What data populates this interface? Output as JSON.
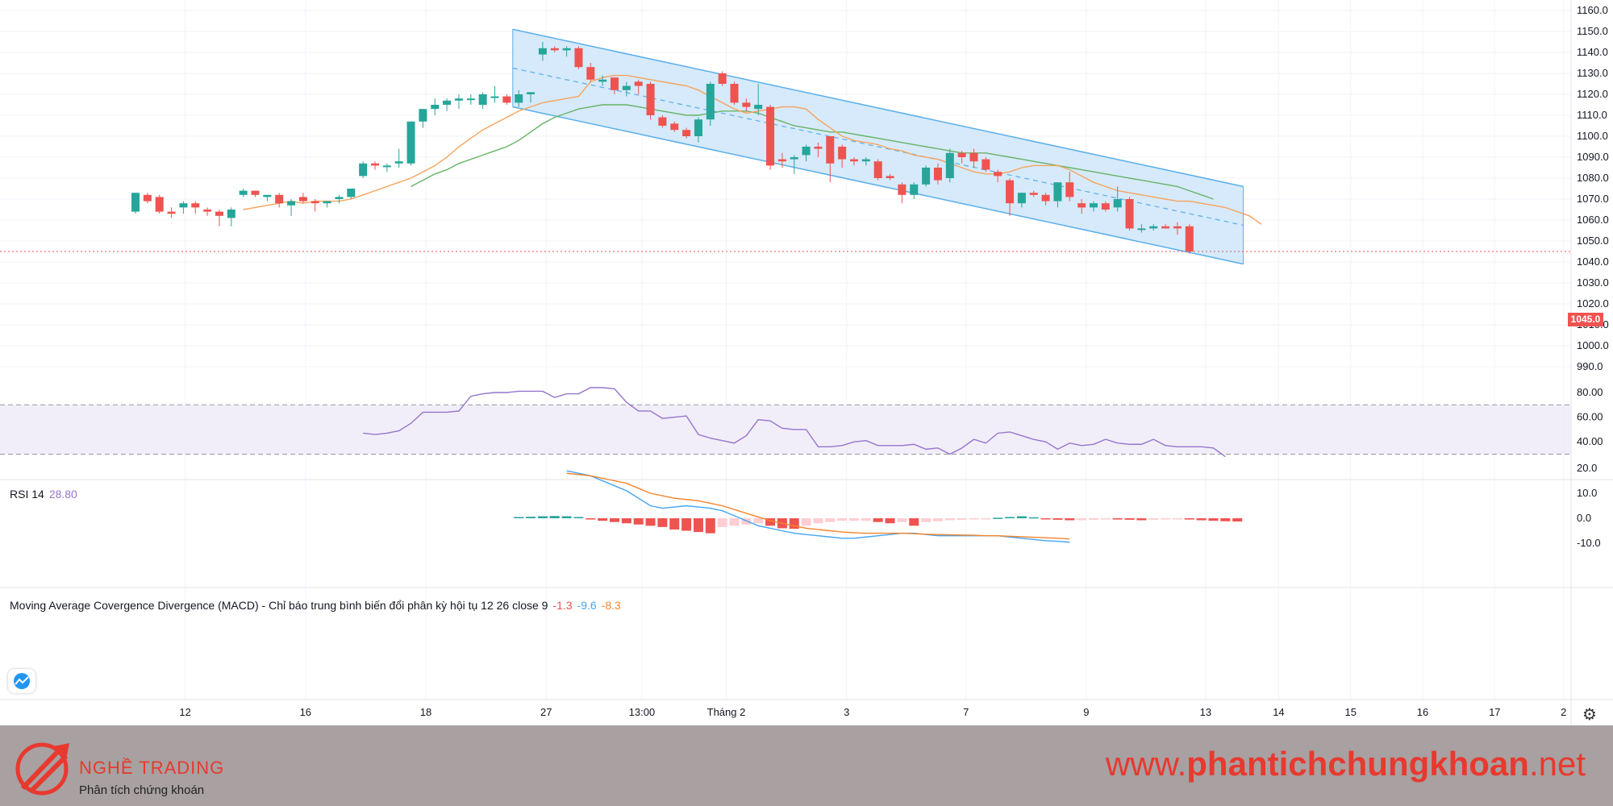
{
  "chart_data": {
    "type": "candlestick",
    "x_ticks": [
      "12",
      "16",
      "18",
      "27",
      "13:00",
      "Tháng 2",
      "3",
      "7",
      "9",
      "13",
      "14",
      "15",
      "16",
      "17",
      "2"
    ],
    "price_axis": {
      "ticks": [
        "1160.0",
        "1150.0",
        "1140.0",
        "1130.0",
        "1120.0",
        "1110.0",
        "1100.0",
        "1090.0",
        "1080.0",
        "1070.0",
        "1060.0",
        "1050.0",
        "1040.0",
        "1030.0",
        "1020.0",
        "1010.0",
        "1000.0",
        "990.0"
      ],
      "range": [
        985,
        1163
      ]
    },
    "last_price_label": "1045.0",
    "last_price": 1045,
    "candles": [
      {
        "o": 1064,
        "h": 1073,
        "l": 1063,
        "c": 1073
      },
      {
        "o": 1072,
        "h": 1073,
        "l": 1068,
        "c": 1069
      },
      {
        "o": 1071,
        "h": 1072,
        "l": 1063,
        "c": 1064
      },
      {
        "o": 1064,
        "h": 1066,
        "l": 1061,
        "c": 1063
      },
      {
        "o": 1066,
        "h": 1069,
        "l": 1063,
        "c": 1068
      },
      {
        "o": 1068,
        "h": 1069,
        "l": 1063,
        "c": 1066
      },
      {
        "o": 1065,
        "h": 1066,
        "l": 1062,
        "c": 1064
      },
      {
        "o": 1064,
        "h": 1065,
        "l": 1057,
        "c": 1062
      },
      {
        "o": 1061,
        "h": 1066,
        "l": 1057,
        "c": 1065
      },
      {
        "o": 1072,
        "h": 1075,
        "l": 1071,
        "c": 1074
      },
      {
        "o": 1074,
        "h": 1074,
        "l": 1071,
        "c": 1072
      },
      {
        "o": 1071,
        "h": 1072,
        "l": 1069,
        "c": 1072
      },
      {
        "o": 1072,
        "h": 1073,
        "l": 1066,
        "c": 1068
      },
      {
        "o": 1067,
        "h": 1070,
        "l": 1062,
        "c": 1069
      },
      {
        "o": 1071,
        "h": 1073,
        "l": 1068,
        "c": 1069
      },
      {
        "o": 1069,
        "h": 1070,
        "l": 1064,
        "c": 1068
      },
      {
        "o": 1068,
        "h": 1069,
        "l": 1066,
        "c": 1069
      },
      {
        "o": 1070,
        "h": 1072,
        "l": 1068,
        "c": 1071
      },
      {
        "o": 1071,
        "h": 1075,
        "l": 1070,
        "c": 1075
      },
      {
        "o": 1081,
        "h": 1088,
        "l": 1080,
        "c": 1087
      },
      {
        "o": 1087,
        "h": 1088,
        "l": 1084,
        "c": 1086
      },
      {
        "o": 1086,
        "h": 1087,
        "l": 1083,
        "c": 1086
      },
      {
        "o": 1087,
        "h": 1094,
        "l": 1085,
        "c": 1088
      },
      {
        "o": 1087,
        "h": 1107,
        "l": 1086,
        "c": 1107
      },
      {
        "o": 1107,
        "h": 1113,
        "l": 1104,
        "c": 1113
      },
      {
        "o": 1113,
        "h": 1118,
        "l": 1110,
        "c": 1115
      },
      {
        "o": 1115,
        "h": 1118,
        "l": 1112,
        "c": 1117
      },
      {
        "o": 1117,
        "h": 1120,
        "l": 1113,
        "c": 1118
      },
      {
        "o": 1118,
        "h": 1120,
        "l": 1115,
        "c": 1118
      },
      {
        "o": 1115,
        "h": 1121,
        "l": 1113,
        "c": 1120
      },
      {
        "o": 1119,
        "h": 1124,
        "l": 1116,
        "c": 1119
      },
      {
        "o": 1119,
        "h": 1120,
        "l": 1115,
        "c": 1116
      },
      {
        "o": 1116,
        "h": 1122,
        "l": 1114,
        "c": 1120
      },
      {
        "o": 1120,
        "h": 1121,
        "l": 1116,
        "c": 1121
      },
      {
        "o": 1139,
        "h": 1145,
        "l": 1136,
        "c": 1142
      },
      {
        "o": 1142,
        "h": 1143,
        "l": 1140,
        "c": 1141
      },
      {
        "o": 1141,
        "h": 1143,
        "l": 1138,
        "c": 1142
      },
      {
        "o": 1142,
        "h": 1143,
        "l": 1132,
        "c": 1133
      },
      {
        "o": 1133,
        "h": 1135,
        "l": 1126,
        "c": 1127
      },
      {
        "o": 1126,
        "h": 1129,
        "l": 1124,
        "c": 1127
      },
      {
        "o": 1128,
        "h": 1128,
        "l": 1120,
        "c": 1122
      },
      {
        "o": 1122,
        "h": 1126,
        "l": 1119,
        "c": 1124
      },
      {
        "o": 1126,
        "h": 1127,
        "l": 1120,
        "c": 1124
      },
      {
        "o": 1125,
        "h": 1126,
        "l": 1108,
        "c": 1110
      },
      {
        "o": 1109,
        "h": 1110,
        "l": 1104,
        "c": 1105
      },
      {
        "o": 1106,
        "h": 1107,
        "l": 1102,
        "c": 1103
      },
      {
        "o": 1103,
        "h": 1104,
        "l": 1099,
        "c": 1100
      },
      {
        "o": 1100,
        "h": 1109,
        "l": 1097,
        "c": 1108
      },
      {
        "o": 1108,
        "h": 1126,
        "l": 1105,
        "c": 1125
      },
      {
        "o": 1130,
        "h": 1131,
        "l": 1124,
        "c": 1125
      },
      {
        "o": 1125,
        "h": 1126,
        "l": 1115,
        "c": 1116
      },
      {
        "o": 1116,
        "h": 1118,
        "l": 1112,
        "c": 1114
      },
      {
        "o": 1113,
        "h": 1125,
        "l": 1110,
        "c": 1115
      },
      {
        "o": 1114,
        "h": 1115,
        "l": 1084,
        "c": 1086
      },
      {
        "o": 1089,
        "h": 1092,
        "l": 1085,
        "c": 1088
      },
      {
        "o": 1089,
        "h": 1091,
        "l": 1082,
        "c": 1090
      },
      {
        "o": 1091,
        "h": 1096,
        "l": 1088,
        "c": 1095
      },
      {
        "o": 1095,
        "h": 1097,
        "l": 1090,
        "c": 1094
      },
      {
        "o": 1100,
        "h": 1100,
        "l": 1078,
        "c": 1087
      },
      {
        "o": 1095,
        "h": 1096,
        "l": 1085,
        "c": 1089
      },
      {
        "o": 1089,
        "h": 1090,
        "l": 1086,
        "c": 1088
      },
      {
        "o": 1088,
        "h": 1090,
        "l": 1086,
        "c": 1089
      },
      {
        "o": 1088,
        "h": 1089,
        "l": 1079,
        "c": 1080
      },
      {
        "o": 1081,
        "h": 1082,
        "l": 1079,
        "c": 1080
      },
      {
        "o": 1077,
        "h": 1078,
        "l": 1068,
        "c": 1072
      },
      {
        "o": 1072,
        "h": 1078,
        "l": 1070,
        "c": 1077
      },
      {
        "o": 1077,
        "h": 1086,
        "l": 1076,
        "c": 1085
      },
      {
        "o": 1085,
        "h": 1087,
        "l": 1077,
        "c": 1079
      },
      {
        "o": 1080,
        "h": 1094,
        "l": 1078,
        "c": 1092
      },
      {
        "o": 1092,
        "h": 1093,
        "l": 1087,
        "c": 1090
      },
      {
        "o": 1092,
        "h": 1094,
        "l": 1085,
        "c": 1088
      },
      {
        "o": 1089,
        "h": 1090,
        "l": 1083,
        "c": 1084
      },
      {
        "o": 1083,
        "h": 1084,
        "l": 1078,
        "c": 1081
      },
      {
        "o": 1079,
        "h": 1080,
        "l": 1062,
        "c": 1068
      },
      {
        "o": 1068,
        "h": 1073,
        "l": 1066,
        "c": 1073
      },
      {
        "o": 1073,
        "h": 1074,
        "l": 1071,
        "c": 1072
      },
      {
        "o": 1072,
        "h": 1073,
        "l": 1067,
        "c": 1069
      },
      {
        "o": 1069,
        "h": 1078,
        "l": 1066,
        "c": 1078
      },
      {
        "o": 1078,
        "h": 1083,
        "l": 1069,
        "c": 1071
      },
      {
        "o": 1068,
        "h": 1070,
        "l": 1063,
        "c": 1066
      },
      {
        "o": 1066,
        "h": 1069,
        "l": 1064,
        "c": 1068
      },
      {
        "o": 1068,
        "h": 1069,
        "l": 1064,
        "c": 1065
      },
      {
        "o": 1066,
        "h": 1076,
        "l": 1064,
        "c": 1070
      },
      {
        "o": 1070,
        "h": 1071,
        "l": 1055,
        "c": 1056
      },
      {
        "o": 1056,
        "h": 1058,
        "l": 1054,
        "c": 1056
      },
      {
        "o": 1056,
        "h": 1058,
        "l": 1055,
        "c": 1057
      },
      {
        "o": 1057,
        "h": 1058,
        "l": 1056,
        "c": 1056
      },
      {
        "o": 1057,
        "h": 1059,
        "l": 1053,
        "c": 1056
      },
      {
        "o": 1057,
        "h": 1058,
        "l": 1044,
        "c": 1045
      }
    ],
    "ma_fast_start": 9,
    "ma_fast": [
      1065,
      1066,
      1067,
      1068,
      1069,
      1068,
      1069,
      1069,
      1069,
      1070,
      1072,
      1074,
      1076,
      1078,
      1080,
      1083,
      1086,
      1090,
      1095,
      1099,
      1103,
      1106,
      1109,
      1112,
      1114,
      1116,
      1117,
      1118,
      1119,
      1126,
      1128,
      1129,
      1129,
      1128,
      1127,
      1126,
      1125,
      1124,
      1122,
      1119,
      1116,
      1113,
      1111,
      1112,
      1113,
      1114,
      1114,
      1113,
      1108,
      1104,
      1100,
      1098,
      1097,
      1096,
      1094,
      1093,
      1091,
      1090,
      1089,
      1087,
      1085,
      1083,
      1082,
      1082,
      1083,
      1085,
      1086,
      1086,
      1086,
      1084,
      1081,
      1078,
      1076,
      1074,
      1073,
      1072,
      1071,
      1070,
      1069,
      1069,
      1068,
      1067,
      1066,
      1064,
      1062,
      1058
    ],
    "ma_slow_start": 23,
    "ma_slow": [
      1076,
      1079,
      1082,
      1084,
      1087,
      1089,
      1091,
      1093,
      1095,
      1098,
      1102,
      1106,
      1109,
      1111,
      1113,
      1114,
      1115,
      1115,
      1115,
      1114,
      1113,
      1112,
      1111,
      1110,
      1110,
      1111,
      1112,
      1112,
      1112,
      1111,
      1109,
      1107,
      1105,
      1104,
      1103,
      1102,
      1102,
      1101,
      1100,
      1099,
      1098,
      1097,
      1096,
      1095,
      1094,
      1093,
      1092,
      1092,
      1092,
      1091,
      1090,
      1089,
      1088,
      1087,
      1086,
      1085,
      1084,
      1083,
      1082,
      1081,
      1080,
      1079,
      1078,
      1077,
      1076,
      1074,
      1072,
      1070
    ],
    "channel": {
      "upper_start": 1151,
      "upper_end": 1076,
      "lower_start": 1114,
      "lower_end": 1039,
      "start_index": 31.5,
      "end_index": 92.5
    },
    "rsi": {
      "label": "RSI 14",
      "value": "28.80",
      "ticks": [
        "80.00",
        "60.00",
        "40.00"
      ],
      "upper_band": 70,
      "lower_band": 30,
      "start": 19,
      "values": [
        47,
        46,
        47,
        49,
        55,
        64,
        64,
        64,
        65,
        77,
        79,
        80,
        80,
        81,
        81,
        81,
        76,
        79,
        79,
        84,
        84,
        83,
        72,
        65,
        65,
        59,
        60,
        61,
        46,
        43,
        41,
        39,
        45,
        58,
        57,
        51,
        50,
        50,
        36,
        36,
        37,
        40,
        41,
        37,
        37,
        37,
        38,
        34,
        35,
        30,
        35,
        42,
        39,
        47,
        48,
        45,
        42,
        40,
        34,
        39,
        37,
        38,
        42,
        39,
        38,
        38,
        42,
        37,
        36,
        36,
        36,
        35,
        28
      ]
    },
    "macd": {
      "label": "Moving Average Covergence Divergence (MACD) - Chỉ báo trung bình biến đổi phân kỳ hội tụ 12 26 close 9",
      "hist_value": "-1.3",
      "macd_value": "-9.6",
      "signal_value": "-8.3",
      "ticks": [
        "20.0",
        "10.0",
        "0.0",
        "-10.0"
      ],
      "range": [
        -13,
        22
      ],
      "line_start": 36,
      "macd_line": [
        19,
        18,
        17,
        15,
        13,
        11,
        8,
        5,
        4,
        4.5,
        5,
        4.5,
        4,
        3,
        1,
        -1,
        -3,
        -4,
        -5,
        -6,
        -6.5,
        -7,
        -7.5,
        -8,
        -8,
        -7.5,
        -7,
        -6.5,
        -6,
        -6,
        -6.5,
        -7,
        -7,
        -7,
        -7,
        -7,
        -7,
        -7.5,
        -8,
        -8.5,
        -9,
        -9.2,
        -9.6
      ],
      "signal_line": [
        18,
        17.5,
        17,
        16,
        15,
        14,
        12,
        10,
        9,
        8,
        7.5,
        7,
        6,
        5,
        3.5,
        2,
        0.5,
        -1,
        -2,
        -3,
        -4,
        -4.5,
        -5,
        -5.5,
        -5.8,
        -6,
        -6,
        -6,
        -6,
        -6.2,
        -6.4,
        -6.5,
        -6.6,
        -6.7,
        -6.8,
        -7,
        -7,
        -7.2,
        -7.4,
        -7.6,
        -7.8,
        -8,
        -8.3
      ],
      "hist_start": 32,
      "histogram": [
        0.5,
        0.6,
        0.8,
        0.9,
        0.8,
        0.5,
        -0.5,
        -1,
        -1.5,
        -2,
        -2.5,
        -3,
        -3.5,
        -4.5,
        -5,
        -5.5,
        -6,
        -3.5,
        -3,
        -2.5,
        -2,
        -3,
        -4,
        -4.2,
        -3,
        -2,
        -1.5,
        -1,
        -1,
        -1,
        -1.5,
        -2,
        -1.5,
        -3,
        -1.5,
        -1.2,
        -0.8,
        -0.6,
        -0.5,
        -0.4,
        0.2,
        0.5,
        0.8,
        0.4,
        -0.4,
        -0.6,
        -0.8,
        -0.8,
        -0.6,
        -0.4,
        -0.5,
        -0.6,
        -0.8,
        -0.6,
        -0.4,
        -0.3,
        -0.5,
        -0.8,
        -1,
        -1.2,
        -1.3
      ]
    },
    "colors": {
      "up": "#26a69a",
      "down": "#ef5350",
      "ma_fast": "#f7a35c",
      "ma_slow": "#66b366",
      "channel_fill": "#cfe6fa",
      "channel_line": "#5aaee8",
      "rsi": "#9575cd",
      "macd": "#42a5f5",
      "signal": "#f7842a",
      "hist_neg": "#ef5350",
      "hist_neg_light": "#ffcdd2",
      "hist_pos": "#26a69a"
    }
  },
  "footer": {
    "brand_name": "NGHỀ TRADING",
    "brand_sub": "Phân tích chứng khoán",
    "url_prefix": "www.",
    "url_bold": "phantichchungkhoan",
    "url_suffix": ".net"
  },
  "icons": {
    "logo": "tradingview-cloud-icon",
    "settings": "gear-icon"
  }
}
